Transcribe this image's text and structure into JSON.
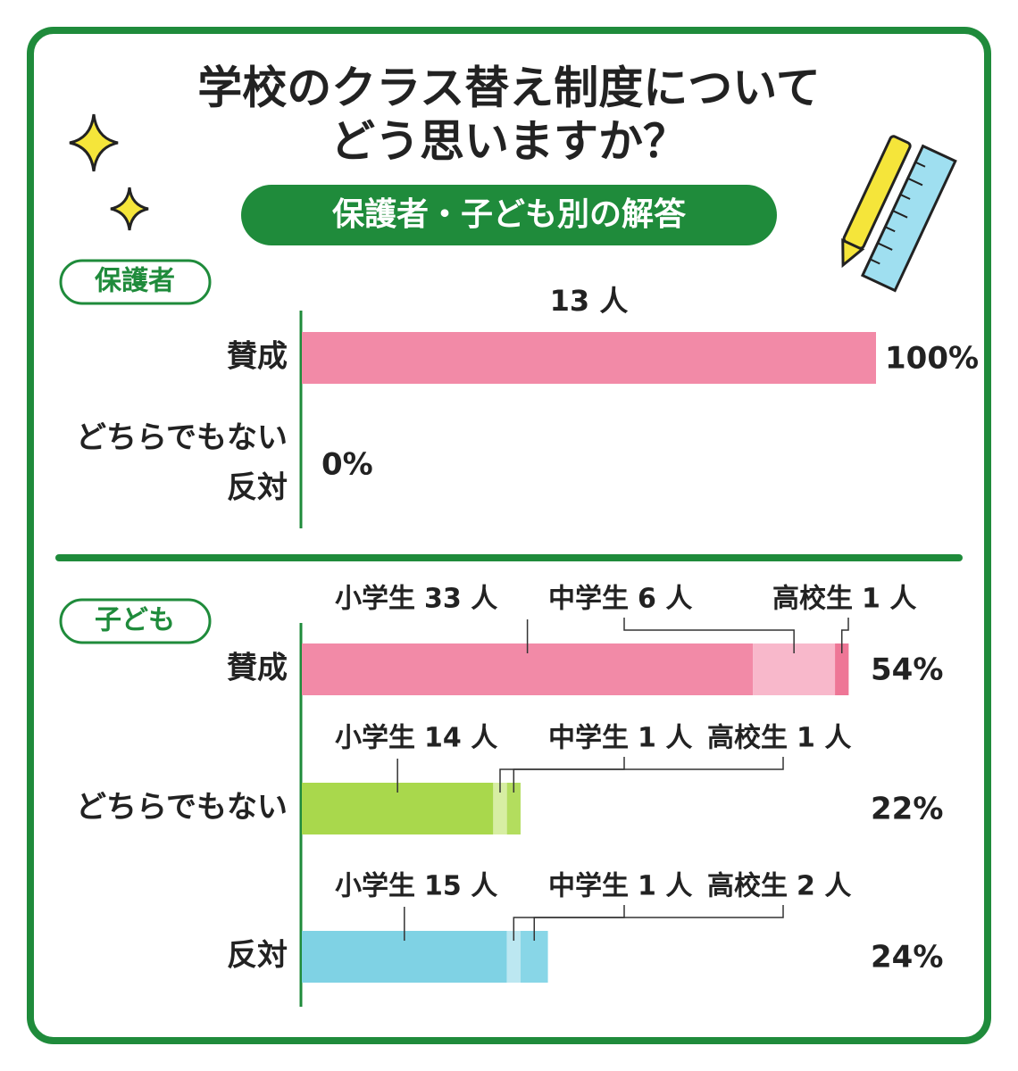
{
  "title": [
    "学校のクラス替え制度について",
    "どう思いますか？"
  ],
  "subtitle": "保護者・子ども別の解答",
  "chart_data": [
    {
      "type": "bar",
      "label": "保護者",
      "categories": [
        "賛成",
        [
          "どちらでもない",
          "反対"
        ]
      ],
      "values": [
        100,
        0
      ],
      "value_labels": [
        "100%",
        "0%"
      ],
      "count_label": "13 人",
      "color": "#f28aa7",
      "xlim": [
        0,
        100
      ]
    },
    {
      "type": "stacked-bar",
      "label": "子ども",
      "categories": [
        "賛成",
        "どちらでもない",
        "反対"
      ],
      "series": [
        {
          "name": "小学生",
          "values": [
            33,
            14,
            15
          ],
          "value_labels": [
            "33 人",
            "14 人",
            "15 人"
          ]
        },
        {
          "name": "中学生",
          "values": [
            6,
            1,
            1
          ],
          "value_labels": [
            "6 人",
            "1 人",
            "1 人"
          ]
        },
        {
          "name": "高校生",
          "values": [
            1,
            1,
            2
          ],
          "value_labels": [
            "1 人",
            "1 人",
            "2 人"
          ]
        }
      ],
      "colors": [
        [
          "#f28aa7",
          "#f8b8cb",
          "#ee7696"
        ],
        [
          "#a9d84c",
          "#d7eea3",
          "#b3dd5e"
        ],
        [
          "#7fd2e4",
          "#bce7f1",
          "#88d6e7"
        ]
      ],
      "percent_labels": [
        "54%",
        "22%",
        "24%"
      ],
      "xlim": [
        0,
        42
      ]
    }
  ]
}
